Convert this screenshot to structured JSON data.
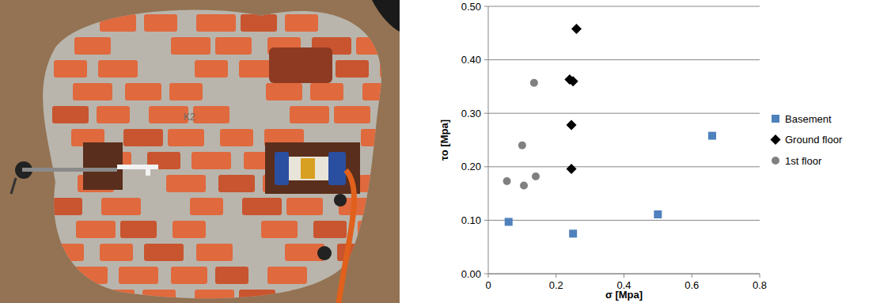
{
  "photo": {
    "annotation": "K2"
  },
  "chart_data": {
    "type": "scatter",
    "x_label": "σ [Mpa]",
    "y_label": "τo [Mpa]",
    "xlim": [
      0,
      0.8
    ],
    "xticks": [
      0,
      0.2,
      0.4,
      0.6,
      0.8
    ],
    "ylim": [
      0,
      0.5
    ],
    "yticks": [
      {
        "value": 0,
        "label": "0.00"
      },
      {
        "value": 0.1,
        "label": "0.10"
      },
      {
        "value": 0.2,
        "label": "0.20"
      },
      {
        "value": 0.3,
        "label": "0.30"
      },
      {
        "value": 0.4,
        "label": "0.40"
      },
      {
        "value": 0.5,
        "label": "0.50"
      }
    ],
    "grid": true,
    "legend": "right",
    "series": [
      {
        "name": "Basement",
        "color": "#4f81bd",
        "marker": "square",
        "x": [
          0.06,
          0.25,
          0.5,
          0.66
        ],
        "values": [
          0.097,
          0.075,
          0.111,
          0.258
        ]
      },
      {
        "name": "Ground floor",
        "color": "#000000",
        "marker": "diamond",
        "x": [
          0.24,
          0.25,
          0.245,
          0.245,
          0.26
        ],
        "values": [
          0.363,
          0.36,
          0.278,
          0.196,
          0.458
        ]
      },
      {
        "name": "1st floor",
        "color": "#808080",
        "marker": "circle",
        "x": [
          0.055,
          0.1,
          0.105,
          0.135,
          0.14
        ],
        "values": [
          0.173,
          0.24,
          0.165,
          0.357,
          0.182
        ]
      }
    ]
  }
}
